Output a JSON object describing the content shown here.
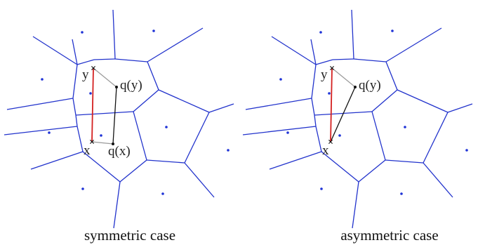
{
  "colors": {
    "voronoi_edge": "#2233cc",
    "site": "#1f33d6",
    "red_segment": "#d42020",
    "black_segment": "#111111",
    "gray_segment": "#9a9a9a",
    "marker": "#111111"
  },
  "labels": {
    "y": "y",
    "x": "x",
    "qy": "q(y)",
    "qx": "q(x)"
  },
  "panels": [
    {
      "caption": "symmetric case",
      "show_qx": true
    },
    {
      "caption": "asymmetric case",
      "show_qx": false
    }
  ]
}
